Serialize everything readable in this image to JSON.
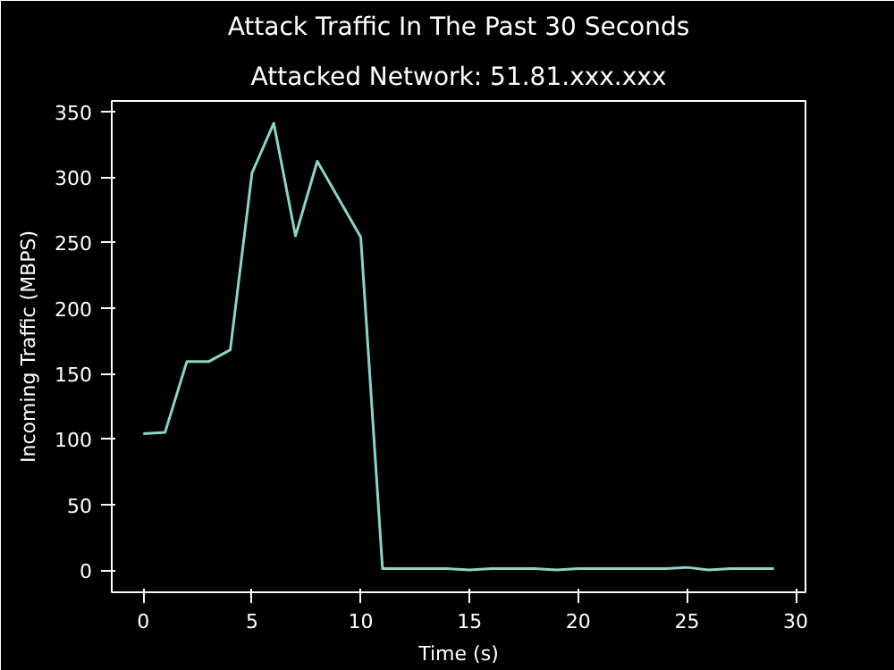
{
  "chart_data": {
    "type": "line",
    "title": "Attack Traffic In The Past 30 Seconds",
    "subtitle": "Attacked Network: 51.81.xxx.xxx",
    "xlabel": "Time (s)",
    "ylabel": "Incoming Traffic (MBPS)",
    "x": [
      0,
      1,
      2,
      3,
      4,
      5,
      6,
      7,
      8,
      9,
      10,
      11,
      12,
      13,
      14,
      15,
      16,
      17,
      18,
      19,
      20,
      21,
      22,
      23,
      24,
      25,
      26,
      27,
      28,
      29
    ],
    "series": [
      {
        "color": "#8dd3c7",
        "values": [
          104,
          105,
          159,
          159,
          168,
          303,
          341,
          255,
          312,
          283,
          254,
          1,
          1,
          1,
          1,
          0,
          1,
          1,
          1,
          0,
          1,
          1,
          1,
          1,
          1,
          2,
          0,
          1,
          1,
          1
        ]
      }
    ],
    "xlim": [
      -1.45,
      30.45
    ],
    "ylim": [
      -17,
      358
    ],
    "xticks": [
      0,
      5,
      10,
      15,
      20,
      25,
      30
    ],
    "yticks": [
      0,
      50,
      100,
      150,
      200,
      250,
      300,
      350
    ],
    "grid": false
  }
}
